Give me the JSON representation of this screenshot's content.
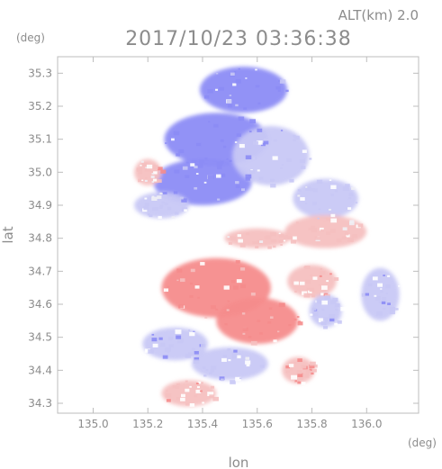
{
  "header": {
    "alt_label": "ALT(km) 2.0",
    "timestamp": "2017/10/23 03:36:38"
  },
  "chart_data": {
    "type": "heatmap",
    "title": "2017/10/23 03:36:38",
    "subtitle": "ALT(km) 2.0",
    "xlabel": "lon",
    "ylabel": "lat",
    "xunit": "(deg)",
    "yunit": "(deg)",
    "xlim": [
      134.87,
      136.19
    ],
    "ylim": [
      34.27,
      35.35
    ],
    "xticks": [
      135.0,
      135.2,
      135.4,
      135.6,
      135.8,
      136.0
    ],
    "xtick_labels": [
      "135.0",
      "135.2",
      "135.4",
      "135.6",
      "135.8",
      "136.0"
    ],
    "yticks": [
      34.3,
      34.4,
      34.5,
      34.6,
      34.7,
      34.8,
      34.9,
      35.0,
      35.1,
      35.2,
      35.3
    ],
    "ytick_labels": [
      "34.3",
      "34.4",
      "34.5",
      "34.6",
      "34.7",
      "34.8",
      "34.9",
      "35.0",
      "35.1",
      "35.2",
      "35.3"
    ],
    "grid": false,
    "colors": {
      "strong_negative": "#8c8cf5",
      "weak_negative": "#c8c8f5",
      "near_zero": "#f0f0f5",
      "weak_positive": "#f5c0c0",
      "strong_positive": "#f58c8c",
      "frame": "#bdbdbd",
      "text": "#8c8c8c"
    },
    "regions": [
      {
        "lon": 135.55,
        "lat": 35.25,
        "rlon": 0.16,
        "rlat": 0.07,
        "value": -0.9
      },
      {
        "lon": 135.45,
        "lat": 35.1,
        "rlon": 0.19,
        "rlat": 0.08,
        "value": -0.9
      },
      {
        "lon": 135.4,
        "lat": 34.97,
        "rlon": 0.18,
        "rlat": 0.07,
        "value": -0.85
      },
      {
        "lon": 135.65,
        "lat": 35.05,
        "rlon": 0.14,
        "rlat": 0.09,
        "value": -0.6
      },
      {
        "lon": 135.85,
        "lat": 34.92,
        "rlon": 0.12,
        "rlat": 0.06,
        "value": -0.35
      },
      {
        "lon": 135.25,
        "lat": 34.9,
        "rlon": 0.1,
        "rlat": 0.04,
        "value": -0.4
      },
      {
        "lon": 135.2,
        "lat": 35.0,
        "rlon": 0.05,
        "rlat": 0.04,
        "value": 0.45
      },
      {
        "lon": 135.85,
        "lat": 34.82,
        "rlon": 0.15,
        "rlat": 0.05,
        "value": 0.4
      },
      {
        "lon": 135.6,
        "lat": 34.8,
        "rlon": 0.12,
        "rlat": 0.03,
        "value": 0.35
      },
      {
        "lon": 135.45,
        "lat": 34.65,
        "rlon": 0.2,
        "rlat": 0.09,
        "value": 0.8
      },
      {
        "lon": 135.6,
        "lat": 34.55,
        "rlon": 0.15,
        "rlat": 0.07,
        "value": 0.85
      },
      {
        "lon": 135.8,
        "lat": 34.67,
        "rlon": 0.09,
        "rlat": 0.05,
        "value": 0.5
      },
      {
        "lon": 135.85,
        "lat": 34.58,
        "rlon": 0.06,
        "rlat": 0.05,
        "value": -0.5
      },
      {
        "lon": 135.3,
        "lat": 34.48,
        "rlon": 0.12,
        "rlat": 0.05,
        "value": -0.6
      },
      {
        "lon": 135.5,
        "lat": 34.42,
        "rlon": 0.14,
        "rlat": 0.05,
        "value": -0.45
      },
      {
        "lon": 136.05,
        "lat": 34.63,
        "rlon": 0.07,
        "rlat": 0.08,
        "value": -0.6
      },
      {
        "lon": 135.35,
        "lat": 34.33,
        "rlon": 0.1,
        "rlat": 0.04,
        "value": 0.55
      },
      {
        "lon": 135.75,
        "lat": 34.4,
        "rlon": 0.06,
        "rlat": 0.04,
        "value": 0.6
      }
    ]
  }
}
